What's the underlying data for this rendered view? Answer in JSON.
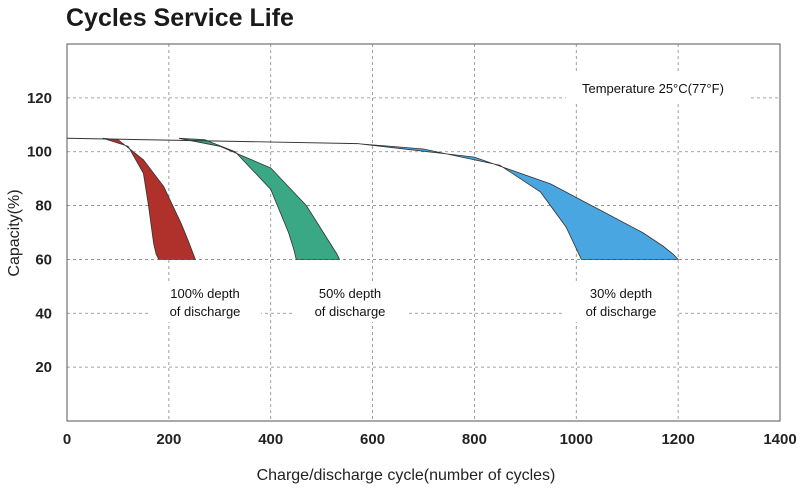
{
  "chart_data": {
    "type": "area",
    "title": "Cycles Service Life",
    "xlabel": "Charge/discharge cycle(number of cycles)",
    "ylabel": "Capacity(%)",
    "xlim": [
      0,
      1400
    ],
    "ylim": [
      0,
      140
    ],
    "x_ticks": [
      "0",
      "200",
      "400",
      "600",
      "800",
      "1000",
      "1200",
      "1400"
    ],
    "y_ticks": [
      "20",
      "40",
      "60",
      "80",
      "100",
      "120"
    ],
    "grid": true,
    "annotation": "Temperature 25°C(77°F)",
    "start_capacity": 105,
    "end_capacity": 60,
    "series": [
      {
        "label_lines": [
          "100% depth",
          "of discharge"
        ],
        "color": "#b0312c",
        "upper": [
          [
            70,
            105
          ],
          [
            100,
            104.5
          ],
          [
            150,
            97
          ],
          [
            190,
            87
          ],
          [
            225,
            73
          ],
          [
            240,
            66
          ],
          [
            250,
            61
          ],
          [
            252,
            60
          ]
        ],
        "lower": [
          [
            180,
            60
          ],
          [
            175,
            62
          ],
          [
            170,
            66
          ],
          [
            160,
            80
          ],
          [
            150,
            92
          ],
          [
            120,
            102
          ],
          [
            70,
            105
          ]
        ]
      },
      {
        "label_lines": [
          "50% depth",
          "of discharge"
        ],
        "color": "#3aa785",
        "upper": [
          [
            220,
            105
          ],
          [
            300,
            102
          ],
          [
            400,
            94
          ],
          [
            470,
            80
          ],
          [
            510,
            68
          ],
          [
            530,
            62
          ],
          [
            535,
            60
          ]
        ],
        "lower": [
          [
            450,
            60
          ],
          [
            445,
            64
          ],
          [
            435,
            70
          ],
          [
            400,
            86
          ],
          [
            330,
            100
          ],
          [
            270,
            104.5
          ],
          [
            220,
            105
          ]
        ]
      },
      {
        "label_lines": [
          "30% depth",
          "of discharge"
        ],
        "color": "#4aa6e0",
        "upper": [
          [
            570,
            103
          ],
          [
            800,
            98
          ],
          [
            950,
            88
          ],
          [
            1050,
            78
          ],
          [
            1130,
            70
          ],
          [
            1170,
            65
          ],
          [
            1190,
            62
          ],
          [
            1200,
            60
          ]
        ],
        "lower": [
          [
            1010,
            60
          ],
          [
            1000,
            64
          ],
          [
            980,
            72
          ],
          [
            930,
            85
          ],
          [
            850,
            95
          ],
          [
            700,
            101
          ],
          [
            570,
            103
          ]
        ]
      }
    ]
  }
}
